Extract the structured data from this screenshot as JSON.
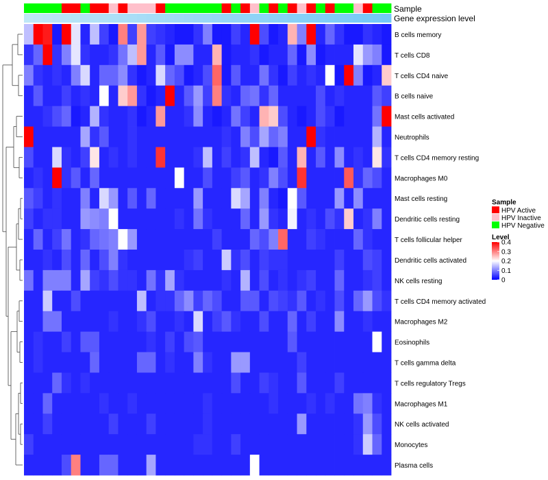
{
  "chart_data": {
    "type": "heatmap",
    "annotations": {
      "sample_label": "Sample",
      "expression_label": "Gene expression level",
      "sample_groups": [
        "HPV Negative",
        "HPV Negative",
        "HPV Negative",
        "HPV Negative",
        "HPV Active",
        "HPV Active",
        "HPV Negative",
        "HPV Active",
        "HPV Active",
        "HPV Inactive",
        "HPV Active",
        "HPV Inactive",
        "HPV Inactive",
        "HPV Inactive",
        "HPV Active",
        "HPV Negative",
        "HPV Negative",
        "HPV Negative",
        "HPV Negative",
        "HPV Negative",
        "HPV Negative",
        "HPV Active",
        "HPV Negative",
        "HPV Active",
        "HPV Inactive",
        "HPV Negative",
        "HPV Active",
        "HPV Negative",
        "HPV Active",
        "HPV Inactive",
        "HPV Active",
        "HPV Negative",
        "HPV Active",
        "HPV Negative",
        "HPV Negative",
        "HPV Inactive",
        "HPV Active",
        "HPV Negative",
        "HPV Negative"
      ],
      "expression_colors": [
        "#bfe7f7",
        "#bde6f7",
        "#bbe5f7",
        "#b9e4f7",
        "#b7e4f7",
        "#b5e3f7",
        "#b3e2f7",
        "#b1e1f7",
        "#afe0f7",
        "#ade0f7",
        "#abdff7",
        "#a9def7",
        "#a7ddf7",
        "#a5dcf7",
        "#a3dcf7",
        "#a1dbf7",
        "#9fdaf7",
        "#9dd9f7",
        "#9bd8f7",
        "#99d8f7",
        "#97d7f7",
        "#95d6f7",
        "#93d5f7",
        "#91d4f7",
        "#8fd4f7",
        "#8dd3f7",
        "#8bd2f7",
        "#89d1f7",
        "#87d0f7",
        "#85d0f7",
        "#83cff7",
        "#81cef7",
        "#7fcdf7",
        "#7dccf7",
        "#7bccf7",
        "#79cbf7",
        "#77caf7",
        "#75c9f7",
        "#73c8f7"
      ]
    },
    "rows": [
      "B cells memory",
      "T cells CD8",
      "T cells CD4 naive",
      "B cells naive",
      "Mast cells activated",
      "Neutrophils",
      "T cells CD4 memory resting",
      "Macrophages M0",
      "Mast cells resting",
      "Dendritic cells resting",
      "T cells follicular helper",
      "Dendritic cells activated",
      "NK cells resting",
      "T cells CD4 memory activated",
      "Macrophages M2",
      "Eosinophils",
      "T cells gamma delta",
      "T cells regulatory  Tregs",
      "Macrophages M1",
      "NK cells activated",
      "Monocytes",
      "Plasma cells"
    ],
    "values": [
      [
        0.15,
        0.4,
        0.38,
        0.02,
        0.4,
        0.18,
        0.03,
        0.15,
        0.05,
        0.02,
        0.3,
        0.05,
        0.28,
        0.05,
        0.04,
        0.03,
        0.02,
        0.02,
        0.04,
        0.1,
        0.02,
        0.02,
        0.05,
        0.03,
        0.4,
        0.06,
        0.02,
        0.03,
        0.26,
        0.1,
        0.4,
        0.03,
        0.08,
        0.04,
        0.02,
        0.02,
        0.04,
        0.03,
        0.02
      ],
      [
        0.04,
        0.08,
        0.4,
        0.04,
        0.1,
        0.18,
        0.04,
        0.03,
        0.03,
        0.04,
        0.09,
        0.15,
        0.28,
        0.03,
        0.07,
        0.02,
        0.11,
        0.11,
        0.03,
        0.03,
        0.26,
        0.02,
        0.03,
        0.03,
        0.04,
        0.02,
        0.03,
        0.03,
        0.08,
        0.02,
        0.11,
        0.02,
        0.03,
        0.03,
        0.03,
        0.18,
        0.12,
        0.1,
        0.02
      ],
      [
        0.1,
        0.04,
        0.03,
        0.04,
        0.03,
        0.1,
        0.17,
        0.03,
        0.08,
        0.08,
        0.11,
        0.04,
        0.02,
        0.03,
        0.17,
        0.08,
        0.06,
        0.02,
        0.03,
        0.06,
        0.32,
        0.02,
        0.07,
        0.03,
        0.03,
        0.09,
        0.04,
        0.02,
        0.05,
        0.03,
        0.04,
        0.03,
        0.2,
        0.02,
        0.4,
        0.1,
        0.02,
        0.03,
        0.24
      ],
      [
        0.03,
        0.07,
        0.03,
        0.03,
        0.05,
        0.03,
        0.04,
        0.03,
        0.2,
        0.03,
        0.24,
        0.28,
        0.04,
        0.02,
        0.03,
        0.4,
        0.03,
        0.07,
        0.12,
        0.05,
        0.3,
        0.04,
        0.03,
        0.08,
        0.09,
        0.04,
        0.08,
        0.03,
        0.03,
        0.03,
        0.03,
        0.06,
        0.03,
        0.04,
        0.03,
        0.03,
        0.03,
        0.07,
        0.05
      ],
      [
        0.03,
        0.03,
        0.04,
        0.06,
        0.08,
        0.02,
        0.03,
        0.14,
        0.04,
        0.03,
        0.03,
        0.04,
        0.02,
        0.03,
        0.28,
        0.03,
        0.03,
        0.04,
        0.11,
        0.03,
        0.02,
        0.03,
        0.09,
        0.05,
        0.03,
        0.26,
        0.24,
        0.06,
        0.03,
        0.02,
        0.03,
        0.06,
        0.04,
        0.02,
        0.03,
        0.03,
        0.03,
        0.09,
        0.4
      ],
      [
        0.4,
        0.03,
        0.03,
        0.03,
        0.03,
        0.03,
        0.13,
        0.04,
        0.07,
        0.03,
        0.03,
        0.04,
        0.03,
        0.03,
        0.03,
        0.03,
        0.03,
        0.03,
        0.03,
        0.03,
        0.03,
        0.04,
        0.03,
        0.1,
        0.06,
        0.13,
        0.08,
        0.1,
        0.03,
        0.03,
        0.4,
        0.04,
        0.03,
        0.03,
        0.03,
        0.03,
        0.03,
        0.14,
        0.03
      ],
      [
        0.06,
        0.03,
        0.03,
        0.17,
        0.04,
        0.03,
        0.05,
        0.22,
        0.03,
        0.04,
        0.03,
        0.04,
        0.03,
        0.03,
        0.36,
        0.03,
        0.03,
        0.03,
        0.04,
        0.15,
        0.03,
        0.05,
        0.03,
        0.04,
        0.15,
        0.03,
        0.02,
        0.07,
        0.03,
        0.26,
        0.03,
        0.07,
        0.03,
        0.11,
        0.03,
        0.04,
        0.03,
        0.22,
        0.04
      ],
      [
        0.03,
        0.04,
        0.03,
        0.4,
        0.04,
        0.07,
        0.03,
        0.08,
        0.03,
        0.03,
        0.03,
        0.03,
        0.03,
        0.03,
        0.03,
        0.03,
        0.2,
        0.03,
        0.03,
        0.06,
        0.03,
        0.03,
        0.05,
        0.07,
        0.03,
        0.04,
        0.1,
        0.06,
        0.03,
        0.36,
        0.03,
        0.03,
        0.03,
        0.03,
        0.33,
        0.04,
        0.08,
        0.06,
        0.03
      ],
      [
        0.07,
        0.05,
        0.03,
        0.04,
        0.03,
        0.03,
        0.1,
        0.03,
        0.17,
        0.12,
        0.03,
        0.07,
        0.03,
        0.08,
        0.03,
        0.03,
        0.03,
        0.03,
        0.12,
        0.03,
        0.03,
        0.03,
        0.17,
        0.13,
        0.03,
        0.1,
        0.03,
        0.02,
        0.2,
        0.07,
        0.03,
        0.03,
        0.03,
        0.12,
        0.03,
        0.11,
        0.03,
        0.03,
        0.03
      ],
      [
        0.05,
        0.03,
        0.04,
        0.04,
        0.03,
        0.03,
        0.12,
        0.11,
        0.1,
        0.2,
        0.03,
        0.03,
        0.03,
        0.03,
        0.03,
        0.03,
        0.04,
        0.03,
        0.09,
        0.04,
        0.03,
        0.03,
        0.03,
        0.08,
        0.03,
        0.12,
        0.04,
        0.03,
        0.19,
        0.03,
        0.04,
        0.03,
        0.06,
        0.04,
        0.24,
        0.03,
        0.04,
        0.1,
        0.03
      ],
      [
        0.03,
        0.08,
        0.03,
        0.05,
        0.09,
        0.03,
        0.04,
        0.08,
        0.09,
        0.1,
        0.2,
        0.12,
        0.03,
        0.03,
        0.03,
        0.03,
        0.03,
        0.03,
        0.03,
        0.03,
        0.05,
        0.03,
        0.03,
        0.03,
        0.08,
        0.06,
        0.1,
        0.32,
        0.03,
        0.03,
        0.05,
        0.04,
        0.03,
        0.03,
        0.03,
        0.08,
        0.04,
        0.03,
        0.03
      ],
      [
        0.03,
        0.03,
        0.04,
        0.03,
        0.06,
        0.03,
        0.08,
        0.03,
        0.06,
        0.1,
        0.04,
        0.03,
        0.03,
        0.03,
        0.03,
        0.03,
        0.03,
        0.04,
        0.05,
        0.03,
        0.03,
        0.16,
        0.04,
        0.06,
        0.03,
        0.05,
        0.04,
        0.04,
        0.03,
        0.03,
        0.03,
        0.03,
        0.03,
        0.05,
        0.03,
        0.03,
        0.06,
        0.05,
        0.03
      ],
      [
        0.09,
        0.03,
        0.1,
        0.1,
        0.1,
        0.03,
        0.13,
        0.05,
        0.04,
        0.06,
        0.04,
        0.04,
        0.03,
        0.09,
        0.04,
        0.13,
        0.04,
        0.03,
        0.03,
        0.03,
        0.03,
        0.04,
        0.03,
        0.14,
        0.03,
        0.06,
        0.03,
        0.04,
        0.03,
        0.04,
        0.05,
        0.03,
        0.03,
        0.08,
        0.03,
        0.03,
        0.04,
        0.05,
        0.03
      ],
      [
        0.03,
        0.03,
        0.16,
        0.03,
        0.03,
        0.06,
        0.03,
        0.03,
        0.03,
        0.03,
        0.03,
        0.03,
        0.15,
        0.03,
        0.04,
        0.04,
        0.08,
        0.11,
        0.05,
        0.08,
        0.06,
        0.03,
        0.03,
        0.07,
        0.07,
        0.03,
        0.06,
        0.05,
        0.04,
        0.07,
        0.03,
        0.04,
        0.03,
        0.06,
        0.03,
        0.08,
        0.12,
        0.06,
        0.04
      ],
      [
        0.03,
        0.03,
        0.09,
        0.09,
        0.03,
        0.03,
        0.03,
        0.03,
        0.03,
        0.04,
        0.03,
        0.03,
        0.04,
        0.06,
        0.03,
        0.03,
        0.04,
        0.03,
        0.17,
        0.03,
        0.05,
        0.07,
        0.04,
        0.03,
        0.03,
        0.06,
        0.03,
        0.03,
        0.08,
        0.03,
        0.05,
        0.03,
        0.03,
        0.11,
        0.03,
        0.03,
        0.04,
        0.03,
        0.03
      ],
      [
        0.03,
        0.04,
        0.03,
        0.03,
        0.05,
        0.03,
        0.07,
        0.07,
        0.03,
        0.03,
        0.03,
        0.03,
        0.03,
        0.04,
        0.03,
        0.05,
        0.03,
        0.06,
        0.07,
        0.03,
        0.03,
        0.03,
        0.03,
        0.03,
        0.03,
        0.03,
        0.03,
        0.03,
        0.07,
        0.03,
        0.03,
        0.03,
        0.03,
        0.03,
        0.03,
        0.03,
        0.03,
        0.2,
        0.03
      ],
      [
        0.03,
        0.04,
        0.03,
        0.03,
        0.03,
        0.03,
        0.03,
        0.08,
        0.03,
        0.03,
        0.03,
        0.03,
        0.08,
        0.08,
        0.03,
        0.04,
        0.03,
        0.03,
        0.1,
        0.04,
        0.03,
        0.03,
        0.12,
        0.12,
        0.03,
        0.03,
        0.03,
        0.03,
        0.03,
        0.05,
        0.03,
        0.03,
        0.03,
        0.03,
        0.03,
        0.03,
        0.03,
        0.03,
        0.03
      ],
      [
        0.03,
        0.03,
        0.03,
        0.08,
        0.04,
        0.03,
        0.04,
        0.03,
        0.03,
        0.03,
        0.03,
        0.03,
        0.03,
        0.03,
        0.03,
        0.03,
        0.03,
        0.03,
        0.03,
        0.03,
        0.03,
        0.03,
        0.06,
        0.03,
        0.03,
        0.05,
        0.04,
        0.03,
        0.03,
        0.07,
        0.03,
        0.03,
        0.03,
        0.05,
        0.03,
        0.03,
        0.03,
        0.03,
        0.03
      ],
      [
        0.03,
        0.03,
        0.08,
        0.03,
        0.03,
        0.03,
        0.03,
        0.03,
        0.04,
        0.03,
        0.03,
        0.04,
        0.03,
        0.03,
        0.03,
        0.03,
        0.03,
        0.03,
        0.03,
        0.04,
        0.03,
        0.03,
        0.03,
        0.03,
        0.03,
        0.03,
        0.04,
        0.03,
        0.03,
        0.03,
        0.04,
        0.03,
        0.04,
        0.03,
        0.03,
        0.09,
        0.1,
        0.04,
        0.03
      ],
      [
        0.03,
        0.03,
        0.05,
        0.03,
        0.03,
        0.03,
        0.03,
        0.03,
        0.03,
        0.05,
        0.03,
        0.03,
        0.03,
        0.05,
        0.03,
        0.03,
        0.03,
        0.03,
        0.03,
        0.04,
        0.03,
        0.03,
        0.03,
        0.03,
        0.03,
        0.03,
        0.03,
        0.03,
        0.03,
        0.12,
        0.03,
        0.03,
        0.03,
        0.03,
        0.03,
        0.04,
        0.12,
        0.06,
        0.03
      ],
      [
        0.05,
        0.03,
        0.03,
        0.03,
        0.03,
        0.03,
        0.03,
        0.03,
        0.03,
        0.03,
        0.03,
        0.03,
        0.03,
        0.03,
        0.03,
        0.03,
        0.03,
        0.03,
        0.04,
        0.04,
        0.03,
        0.03,
        0.05,
        0.03,
        0.03,
        0.03,
        0.03,
        0.03,
        0.03,
        0.03,
        0.03,
        0.03,
        0.03,
        0.03,
        0.03,
        0.04,
        0.16,
        0.08,
        0.03
      ],
      [
        0.03,
        0.03,
        0.03,
        0.03,
        0.06,
        0.3,
        0.03,
        0.03,
        0.08,
        0.08,
        0.03,
        0.03,
        0.03,
        0.13,
        0.03,
        0.03,
        0.03,
        0.03,
        0.03,
        0.03,
        0.03,
        0.03,
        0.03,
        0.03,
        0.2,
        0.03,
        0.03,
        0.03,
        0.03,
        0.03,
        0.03,
        0.03,
        0.03,
        0.03,
        0.03,
        0.03,
        0.03,
        0.03,
        0.03
      ]
    ],
    "colorbar": {
      "title": "Level",
      "range": [
        0,
        0.4
      ],
      "ticks": [
        0.4,
        0.3,
        0.2,
        0.1,
        0
      ],
      "tick_labels": [
        "0.4",
        "0.3",
        "0.2",
        "0.1",
        "0"
      ],
      "colors": {
        "low": "#0000ff",
        "mid": "#ffffff",
        "high": "#ff0000"
      }
    },
    "legend": {
      "title": "Sample",
      "placement": "right",
      "items": [
        {
          "label": "HPV Active",
          "color": "#ff0000"
        },
        {
          "label": "HPV Inactive",
          "color": "#ffc0cb"
        },
        {
          "label": "HPV Negative",
          "color": "#00ff00"
        }
      ]
    },
    "row_dendrogram": true
  }
}
